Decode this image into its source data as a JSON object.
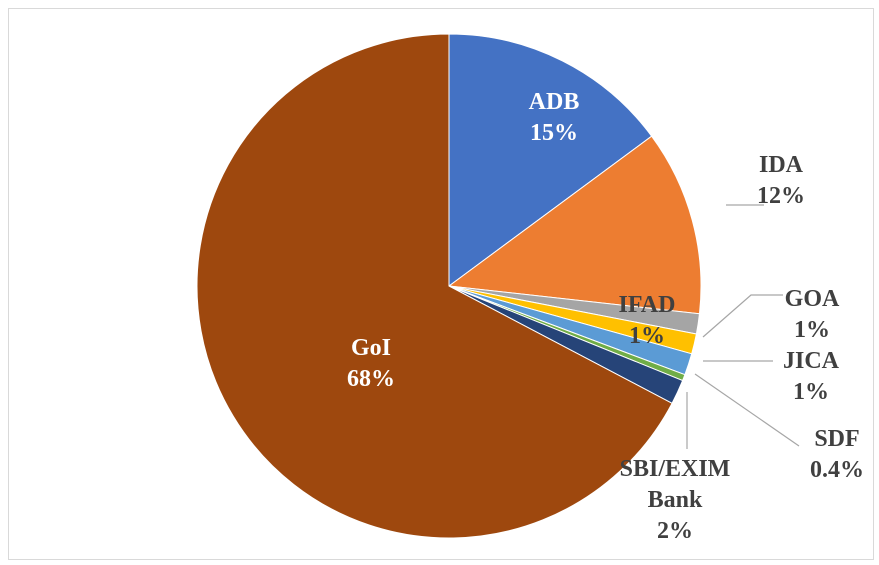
{
  "chart_data": {
    "type": "pie",
    "start_angle_deg": 0,
    "direction": "clockwise",
    "slices": [
      {
        "name": "ADB",
        "pct_label": "15%",
        "value": 15.0,
        "color": "#4472C4"
      },
      {
        "name": "IDA",
        "pct_label": "12%",
        "value": 12.0,
        "color": "#ED7D31"
      },
      {
        "name": "IFAD",
        "pct_label": "1%",
        "value": 1.3,
        "color": "#A5A5A5"
      },
      {
        "name": "GOA",
        "pct_label": "1%",
        "value": 1.3,
        "color": "#FFC000"
      },
      {
        "name": "JICA",
        "pct_label": "1%",
        "value": 1.4,
        "color": "#5B9BD5"
      },
      {
        "name": "SDF",
        "pct_label": "0.4%",
        "value": 0.4,
        "color": "#70AD47"
      },
      {
        "name": "SBI/EXIM Bank",
        "pct_label": "2%",
        "value": 1.6,
        "color": "#264478"
      },
      {
        "name": "GoI",
        "pct_label": "68%",
        "value": 67.9,
        "color": "#9E480E"
      }
    ]
  }
}
